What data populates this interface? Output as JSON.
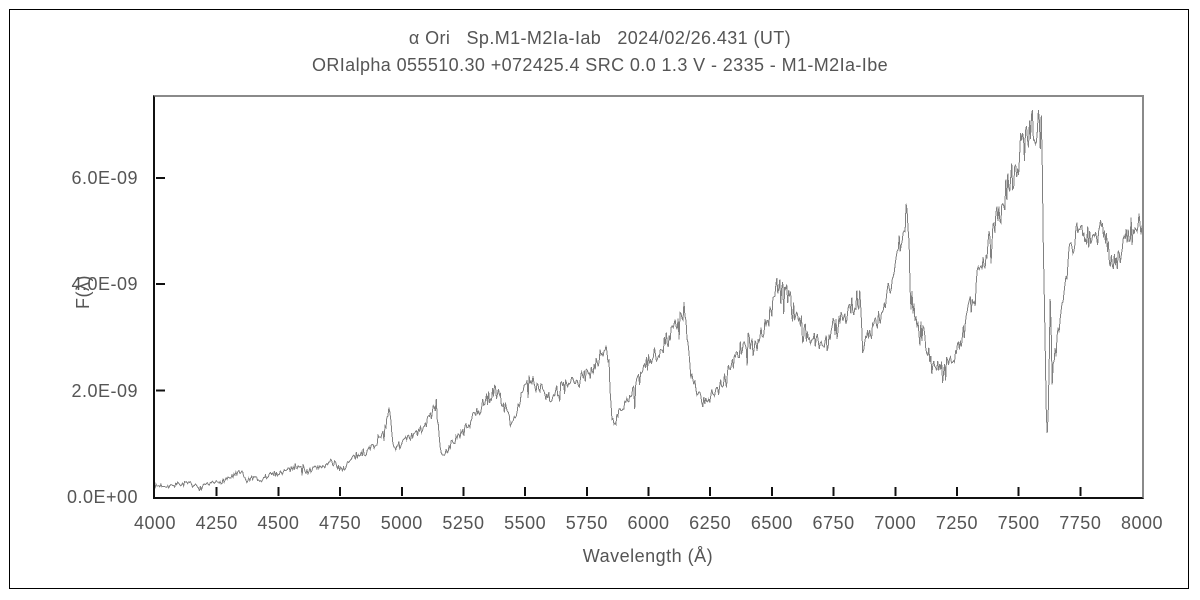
{
  "chart_data": {
    "type": "line",
    "title": "α Ori   Sp.M1-M2Ia-Iab   2024/02/26.431 (UT)",
    "subtitle": "ORIalpha 055510.30 +072425.4 SRC 0.0 1.3 V - 2335 - M1-M2Ia-Ibe",
    "xlabel": "Wavelength (Å)",
    "ylabel": "F(λ)",
    "xlim": [
      4000,
      8000
    ],
    "ylim_scaled": [
      0,
      7.52
    ],
    "flux_scale": "1e-9",
    "grid": false,
    "legend": "none",
    "line_color": "#808080",
    "axis_color": "#111111",
    "frame_color": "#8a8a8a",
    "xticks": [
      4000,
      4250,
      4500,
      4750,
      5000,
      5250,
      5500,
      5750,
      6000,
      6250,
      6500,
      6750,
      7000,
      7250,
      7500,
      7750,
      8000
    ],
    "yticks": [
      {
        "value": 0,
        "label": "0.0E+00"
      },
      {
        "value": 2,
        "label": "2.0E-09"
      },
      {
        "value": 4,
        "label": "4.0E-09"
      },
      {
        "value": 6,
        "label": "6.0E-09"
      }
    ],
    "noise_hint": {
      "amplitude_base": 0.035,
      "amplitude_per_flux": 0.05,
      "sample_step_angstrom": 4
    },
    "series": [
      {
        "name": "spectrum",
        "points": [
          [
            4000,
            0.2
          ],
          [
            4030,
            0.22
          ],
          [
            4060,
            0.21
          ],
          [
            4090,
            0.24
          ],
          [
            4120,
            0.25
          ],
          [
            4150,
            0.24
          ],
          [
            4180,
            0.16
          ],
          [
            4210,
            0.22
          ],
          [
            4240,
            0.26
          ],
          [
            4270,
            0.3
          ],
          [
            4300,
            0.36
          ],
          [
            4330,
            0.43
          ],
          [
            4350,
            0.46
          ],
          [
            4370,
            0.3
          ],
          [
            4400,
            0.36
          ],
          [
            4425,
            0.28
          ],
          [
            4450,
            0.38
          ],
          [
            4475,
            0.43
          ],
          [
            4500,
            0.45
          ],
          [
            4530,
            0.5
          ],
          [
            4560,
            0.55
          ],
          [
            4590,
            0.62
          ],
          [
            4615,
            0.48
          ],
          [
            4640,
            0.52
          ],
          [
            4665,
            0.57
          ],
          [
            4690,
            0.6
          ],
          [
            4715,
            0.65
          ],
          [
            4740,
            0.58
          ],
          [
            4760,
            0.52
          ],
          [
            4780,
            0.62
          ],
          [
            4800,
            0.72
          ],
          [
            4825,
            0.8
          ],
          [
            4850,
            0.85
          ],
          [
            4875,
            0.92
          ],
          [
            4900,
            1.05
          ],
          [
            4920,
            1.2
          ],
          [
            4940,
            1.45
          ],
          [
            4952,
            1.63
          ],
          [
            4962,
            0.98
          ],
          [
            4980,
            0.95
          ],
          [
            5000,
            1.02
          ],
          [
            5025,
            1.08
          ],
          [
            5050,
            1.15
          ],
          [
            5075,
            1.25
          ],
          [
            5100,
            1.4
          ],
          [
            5125,
            1.58
          ],
          [
            5140,
            1.74
          ],
          [
            5152,
            1.15
          ],
          [
            5163,
            0.72
          ],
          [
            5180,
            0.88
          ],
          [
            5200,
            0.98
          ],
          [
            5225,
            1.12
          ],
          [
            5250,
            1.22
          ],
          [
            5275,
            1.38
          ],
          [
            5300,
            1.55
          ],
          [
            5325,
            1.72
          ],
          [
            5350,
            1.86
          ],
          [
            5375,
            2.0
          ],
          [
            5395,
            1.92
          ],
          [
            5415,
            1.72
          ],
          [
            5440,
            1.42
          ],
          [
            5460,
            1.58
          ],
          [
            5480,
            1.8
          ],
          [
            5500,
            2.05
          ],
          [
            5520,
            2.2
          ],
          [
            5545,
            2.08
          ],
          [
            5565,
            2.12
          ],
          [
            5585,
            1.92
          ],
          [
            5605,
            1.88
          ],
          [
            5630,
            2.0
          ],
          [
            5655,
            2.05
          ],
          [
            5680,
            2.1
          ],
          [
            5705,
            2.16
          ],
          [
            5730,
            2.22
          ],
          [
            5755,
            2.32
          ],
          [
            5780,
            2.48
          ],
          [
            5805,
            2.65
          ],
          [
            5825,
            2.75
          ],
          [
            5840,
            2.5
          ],
          [
            5852,
            1.45
          ],
          [
            5862,
            1.32
          ],
          [
            5880,
            1.62
          ],
          [
            5905,
            1.76
          ],
          [
            5930,
            1.88
          ],
          [
            5955,
            2.12
          ],
          [
            5980,
            2.4
          ],
          [
            6005,
            2.56
          ],
          [
            6030,
            2.7
          ],
          [
            6055,
            2.85
          ],
          [
            6080,
            3.0
          ],
          [
            6105,
            3.18
          ],
          [
            6130,
            3.38
          ],
          [
            6148,
            3.52
          ],
          [
            6163,
            2.6
          ],
          [
            6180,
            2.12
          ],
          [
            6205,
            1.94
          ],
          [
            6230,
            1.84
          ],
          [
            6255,
            1.92
          ],
          [
            6280,
            2.02
          ],
          [
            6305,
            2.22
          ],
          [
            6330,
            2.46
          ],
          [
            6355,
            2.66
          ],
          [
            6380,
            2.82
          ],
          [
            6405,
            2.96
          ],
          [
            6425,
            2.8
          ],
          [
            6445,
            2.96
          ],
          [
            6465,
            3.12
          ],
          [
            6485,
            3.32
          ],
          [
            6505,
            3.62
          ],
          [
            6520,
            3.96
          ],
          [
            6540,
            3.8
          ],
          [
            6560,
            3.88
          ],
          [
            6580,
            3.62
          ],
          [
            6600,
            3.46
          ],
          [
            6620,
            3.26
          ],
          [
            6640,
            3.06
          ],
          [
            6660,
            2.92
          ],
          [
            6680,
            3.02
          ],
          [
            6700,
            3.06
          ],
          [
            6720,
            2.86
          ],
          [
            6740,
            3.12
          ],
          [
            6760,
            3.26
          ],
          [
            6780,
            3.36
          ],
          [
            6800,
            3.46
          ],
          [
            6820,
            3.56
          ],
          [
            6845,
            3.68
          ],
          [
            6858,
            3.72
          ],
          [
            6868,
            2.72
          ],
          [
            6882,
            3.02
          ],
          [
            6905,
            3.12
          ],
          [
            6930,
            3.32
          ],
          [
            6955,
            3.62
          ],
          [
            6980,
            4.02
          ],
          [
            7005,
            4.42
          ],
          [
            7025,
            4.85
          ],
          [
            7042,
            5.22
          ],
          [
            7052,
            5.32
          ],
          [
            7060,
            3.75
          ],
          [
            7075,
            3.58
          ],
          [
            7092,
            3.32
          ],
          [
            7112,
            3.05
          ],
          [
            7132,
            2.8
          ],
          [
            7152,
            2.55
          ],
          [
            7177,
            2.48
          ],
          [
            7202,
            2.46
          ],
          [
            7227,
            2.62
          ],
          [
            7252,
            2.78
          ],
          [
            7277,
            3.12
          ],
          [
            7302,
            3.52
          ],
          [
            7327,
            4.02
          ],
          [
            7352,
            4.35
          ],
          [
            7377,
            4.72
          ],
          [
            7402,
            5.1
          ],
          [
            7427,
            5.45
          ],
          [
            7452,
            5.75
          ],
          [
            7477,
            6.1
          ],
          [
            7500,
            6.4
          ],
          [
            7520,
            6.62
          ],
          [
            7542,
            6.86
          ],
          [
            7560,
            7.0
          ],
          [
            7578,
            6.92
          ],
          [
            7595,
            6.8
          ],
          [
            7605,
            3.6
          ],
          [
            7614,
            0.97
          ],
          [
            7622,
            1.85
          ],
          [
            7629,
            4.05
          ],
          [
            7636,
            2.25
          ],
          [
            7646,
            2.62
          ],
          [
            7656,
            2.95
          ],
          [
            7668,
            3.42
          ],
          [
            7682,
            3.92
          ],
          [
            7700,
            4.42
          ],
          [
            7720,
            4.78
          ],
          [
            7740,
            4.96
          ],
          [
            7760,
            5.12
          ],
          [
            7780,
            4.92
          ],
          [
            7800,
            4.86
          ],
          [
            7820,
            5.0
          ],
          [
            7840,
            4.9
          ],
          [
            7860,
            4.72
          ],
          [
            7880,
            4.48
          ],
          [
            7900,
            4.42
          ],
          [
            7920,
            4.6
          ],
          [
            7940,
            4.82
          ],
          [
            7960,
            5.02
          ],
          [
            7980,
            5.1
          ],
          [
            8000,
            5.02
          ]
        ]
      }
    ]
  }
}
